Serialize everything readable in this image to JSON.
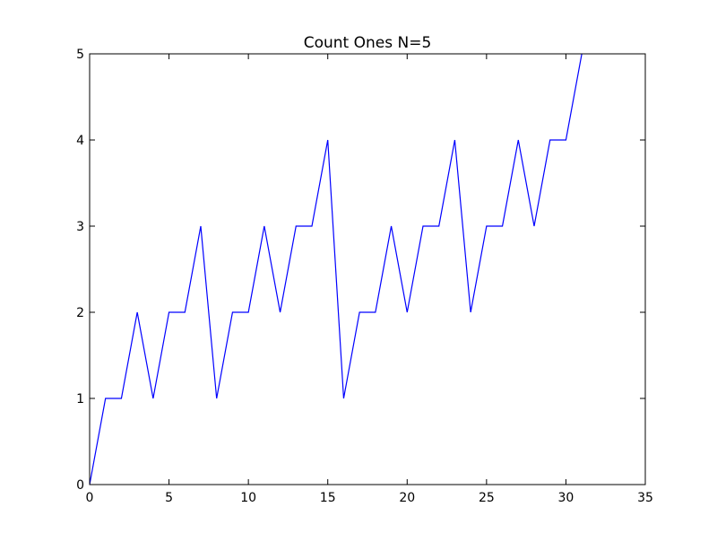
{
  "chart_data": {
    "type": "line",
    "title": "Count Ones N=5",
    "xlabel": "",
    "ylabel": "",
    "xlim": [
      0,
      35
    ],
    "ylim": [
      0,
      5
    ],
    "xticks": [
      0,
      5,
      10,
      15,
      20,
      25,
      30,
      35
    ],
    "yticks": [
      0,
      1,
      2,
      3,
      4,
      5
    ],
    "grid": false,
    "series": [
      {
        "color": "#0000ff",
        "x": [
          0,
          1,
          2,
          3,
          4,
          5,
          6,
          7,
          8,
          9,
          10,
          11,
          12,
          13,
          14,
          15,
          16,
          17,
          18,
          19,
          20,
          21,
          22,
          23,
          24,
          25,
          26,
          27,
          28,
          29,
          30,
          31
        ],
        "y": [
          0,
          1,
          1,
          2,
          1,
          2,
          2,
          3,
          1,
          2,
          2,
          3,
          2,
          3,
          3,
          4,
          1,
          2,
          2,
          3,
          2,
          3,
          3,
          4,
          2,
          3,
          3,
          4,
          3,
          4,
          4,
          5
        ]
      }
    ]
  }
}
